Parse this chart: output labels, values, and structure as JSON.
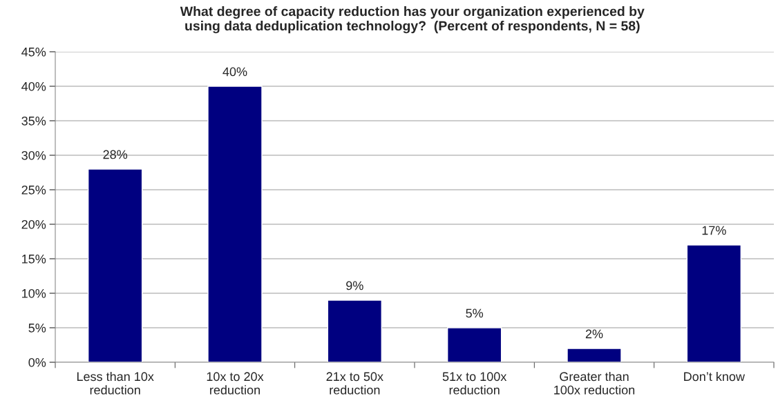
{
  "chart_data": {
    "type": "bar",
    "title": "What degree of capacity reduction has your organization experienced by\nusing data deduplication technology?  (Percent of respondents, N = 58)",
    "categories": [
      "Less than 10x\nreduction",
      "10x to 20x\nreduction",
      "21x to 50x\nreduction",
      "51x to 100x\nreduction",
      "Greater than\n100x reduction",
      "Don’t know"
    ],
    "values": [
      28,
      40,
      9,
      5,
      2,
      17
    ],
    "value_labels": [
      "28%",
      "40%",
      "9%",
      "5%",
      "2%",
      "17%"
    ],
    "color": "#000080",
    "ylim": [
      0,
      45
    ],
    "yticks": [
      {
        "value": 0,
        "label": "0%"
      },
      {
        "value": 5,
        "label": "5%"
      },
      {
        "value": 10,
        "label": "10%"
      },
      {
        "value": 15,
        "label": "15%"
      },
      {
        "value": 20,
        "label": "20%"
      },
      {
        "value": 25,
        "label": "25%"
      },
      {
        "value": 30,
        "label": "30%"
      },
      {
        "value": 35,
        "label": "35%"
      },
      {
        "value": 40,
        "label": "40%"
      },
      {
        "value": 45,
        "label": "45%"
      }
    ],
    "grid": "y"
  }
}
